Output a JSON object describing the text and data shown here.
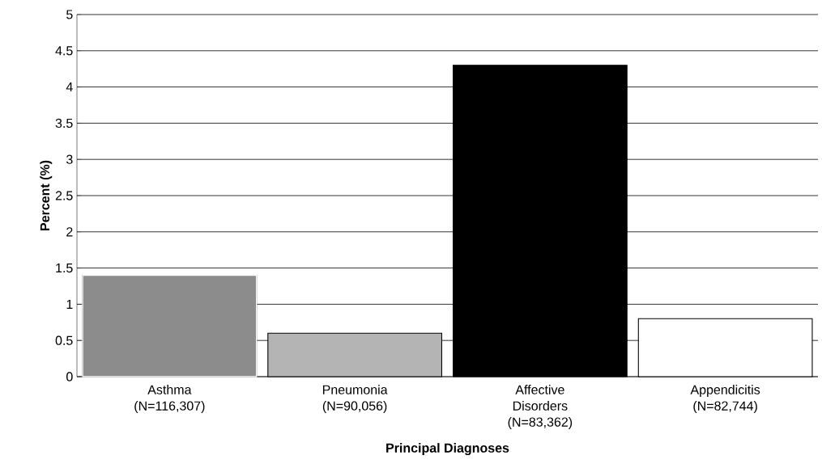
{
  "chart_data": {
    "type": "bar",
    "xlabel": "Principal Diagnoses",
    "ylabel": "Percent (%)",
    "categories": [
      "Asthma (N=116,307)",
      "Pneumonia (N=90,056)",
      "Affective Disorders (N=83,362)",
      "Appendicitis (N=82,744)"
    ],
    "values": [
      1.4,
      0.6,
      4.3,
      0.8
    ],
    "colors": [
      "#8c8c8c",
      "#b4b4b4",
      "#000000",
      "#ffffff"
    ],
    "ylim": [
      0,
      5
    ],
    "yticks": [
      0,
      0.5,
      1,
      1.5,
      2,
      2.5,
      3,
      3.5,
      4,
      4.5,
      5
    ],
    "grid": "y"
  }
}
